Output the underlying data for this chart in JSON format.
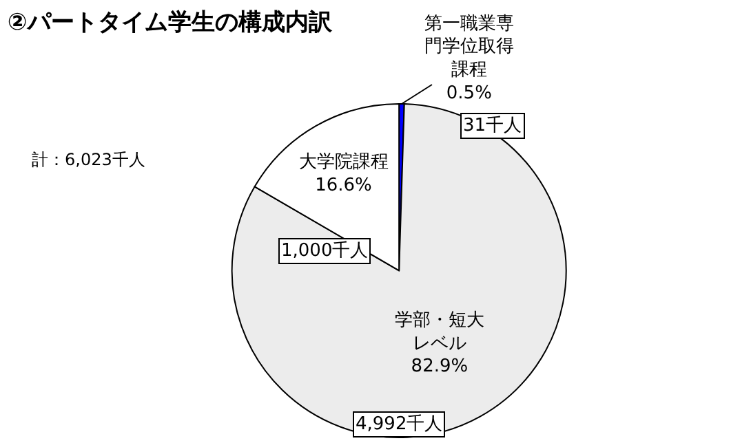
{
  "chart_data": {
    "type": "pie",
    "title": "②パートタイム学生の構成内訳",
    "categories": [
      "第一職業専門学位取得課程",
      "学部・短大レベル",
      "大学院課程"
    ],
    "values": [
      0.5,
      82.9,
      16.6
    ],
    "value_labels": [
      "0.5%",
      "82.9%",
      "16.6%"
    ],
    "colors": [
      "#0000ff",
      "#ececec",
      "#ffffff"
    ],
    "annotations": [
      "計：6,023千人",
      "31千人",
      "4,992千人",
      "1,000千人"
    ],
    "legend": false
  }
}
